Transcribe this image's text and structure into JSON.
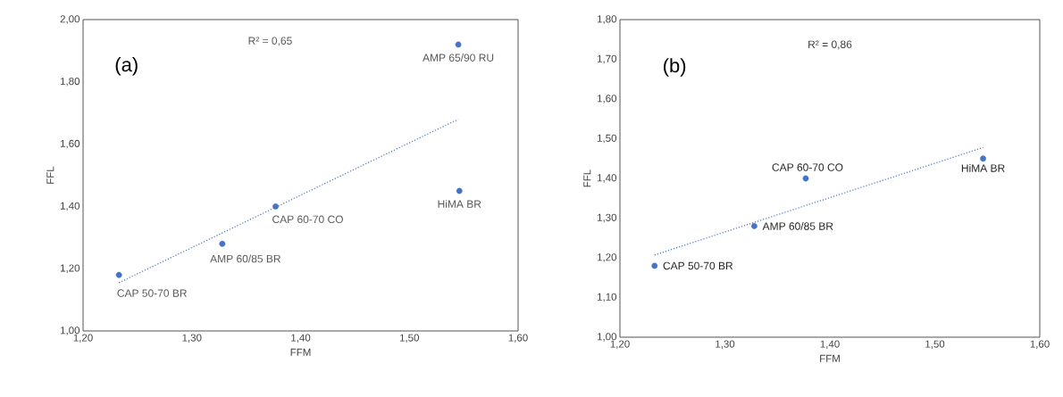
{
  "chart_data": [
    {
      "type": "scatter",
      "xlabel": "FFM",
      "ylabel": "FFL",
      "xlim": [
        1.2,
        1.6
      ],
      "ylim": [
        1.0,
        2.0
      ],
      "xticks": [
        {
          "value": 1.2,
          "label": "1,20"
        },
        {
          "value": 1.3,
          "label": "1,30"
        },
        {
          "value": 1.4,
          "label": "1,40"
        },
        {
          "value": 1.5,
          "label": "1,50"
        },
        {
          "value": 1.6,
          "label": "1,60"
        }
      ],
      "yticks": [
        {
          "value": 1.0,
          "label": "1,00"
        },
        {
          "value": 1.2,
          "label": "1,20"
        },
        {
          "value": 1.4,
          "label": "1,40"
        },
        {
          "value": 1.6,
          "label": "1,60"
        },
        {
          "value": 1.8,
          "label": "1,80"
        },
        {
          "value": 2.0,
          "label": "2,00"
        }
      ],
      "series": [
        {
          "type": "scatter",
          "color": "#4472c4",
          "marker": "circle",
          "x": [
            1.233,
            1.328,
            1.377,
            1.546,
            1.545
          ],
          "values": [
            1.18,
            1.28,
            1.4,
            1.45,
            1.92
          ]
        },
        {
          "type": "line",
          "color": "#4472c4",
          "marker": "none",
          "line_style": "dotted",
          "x": [
            1.233,
            1.545
          ],
          "values": [
            1.155,
            1.68
          ]
        }
      ],
      "annotations": [
        "R² = 0,65",
        "(a)",
        {
          "text": "CAP 50-70 BR",
          "x": 1.233,
          "y": 1.18
        },
        {
          "text": "AMP 60/85 BR",
          "x": 1.328,
          "y": 1.28
        },
        {
          "text": "CAP 60-70 CO",
          "x": 1.377,
          "y": 1.4
        },
        {
          "text": "HiMA BR",
          "x": 1.546,
          "y": 1.45
        },
        {
          "text": "AMP 65/90 RU",
          "x": 1.545,
          "y": 1.92
        }
      ]
    },
    {
      "type": "scatter",
      "xlabel": "FFM",
      "ylabel": "FFL",
      "xlim": [
        1.2,
        1.6
      ],
      "ylim": [
        1.0,
        1.8
      ],
      "xticks": [
        {
          "value": 1.2,
          "label": "1,20"
        },
        {
          "value": 1.3,
          "label": "1,30"
        },
        {
          "value": 1.4,
          "label": "1,40"
        },
        {
          "value": 1.5,
          "label": "1,50"
        },
        {
          "value": 1.6,
          "label": "1,60"
        }
      ],
      "yticks": [
        {
          "value": 1.0,
          "label": "1,00"
        },
        {
          "value": 1.1,
          "label": "1,10"
        },
        {
          "value": 1.2,
          "label": "1,20"
        },
        {
          "value": 1.3,
          "label": "1,30"
        },
        {
          "value": 1.4,
          "label": "1,40"
        },
        {
          "value": 1.5,
          "label": "1,50"
        },
        {
          "value": 1.6,
          "label": "1,60"
        },
        {
          "value": 1.7,
          "label": "1,70"
        },
        {
          "value": 1.8,
          "label": "1,80"
        }
      ],
      "series": [
        {
          "type": "scatter",
          "color": "#4472c4",
          "marker": "circle",
          "x": [
            1.233,
            1.328,
            1.377,
            1.546
          ],
          "values": [
            1.18,
            1.28,
            1.4,
            1.45
          ]
        },
        {
          "type": "line",
          "color": "#4472c4",
          "marker": "none",
          "line_style": "dotted",
          "x": [
            1.233,
            1.546
          ],
          "values": [
            1.207,
            1.478
          ]
        }
      ],
      "annotations": [
        "R² = 0,86",
        "(b)",
        {
          "text": "CAP 50-70 BR",
          "x": 1.233,
          "y": 1.18
        },
        {
          "text": "AMP 60/85 BR",
          "x": 1.328,
          "y": 1.28
        },
        {
          "text": "CAP 60-70 CO",
          "x": 1.377,
          "y": 1.4
        },
        {
          "text": "HiMA BR",
          "x": 1.546,
          "y": 1.45
        }
      ]
    }
  ]
}
